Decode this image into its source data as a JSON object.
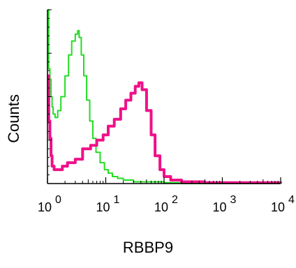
{
  "chart_data": {
    "type": "line",
    "xlabel": "RBBP9",
    "ylabel": "Counts",
    "x_scale": "log",
    "xlim": [
      1,
      10000
    ],
    "x_ticks": [
      {
        "base": "10",
        "exp": "0"
      },
      {
        "base": "10",
        "exp": "1"
      },
      {
        "base": "10",
        "exp": "2"
      },
      {
        "base": "10",
        "exp": "3"
      },
      {
        "base": "10",
        "exp": "4"
      }
    ],
    "ylim": [
      0,
      100
    ],
    "grid": false,
    "legend": "none",
    "series": [
      {
        "color": "#22dd22",
        "x": [
          1.0,
          1.05,
          1.1,
          1.15,
          1.2,
          1.25,
          1.35,
          1.5,
          1.7,
          2.0,
          2.3,
          2.6,
          3.0,
          3.3,
          3.5,
          3.8,
          4.2,
          4.7,
          5.3,
          6.0,
          6.8,
          8.0,
          9.5,
          11,
          13,
          16,
          20,
          25,
          30,
          40,
          60,
          100,
          200,
          10000
        ],
        "y": [
          100,
          66,
          60,
          50,
          44,
          40,
          38,
          42,
          50,
          62,
          74,
          82,
          86,
          88,
          84,
          74,
          62,
          48,
          36,
          26,
          18,
          12,
          8,
          6,
          4,
          3,
          2,
          2,
          1,
          1,
          1,
          0.5,
          0,
          0
        ]
      },
      {
        "color": "#ee1188",
        "x": [
          1.0,
          1.05,
          1.1,
          1.15,
          1.2,
          1.3,
          1.5,
          1.8,
          2.2,
          3.0,
          4.0,
          5.5,
          7.0,
          9.0,
          11,
          14,
          18,
          22,
          27,
          32,
          37,
          42,
          50,
          60,
          70,
          85,
          100,
          130,
          200,
          500,
          1000,
          3000,
          10000
        ],
        "y": [
          62,
          36,
          26,
          16,
          10,
          8,
          8,
          10,
          12,
          14,
          20,
          22,
          25,
          28,
          33,
          37,
          43,
          48,
          52,
          56,
          58,
          54,
          42,
          28,
          16,
          8,
          4,
          2,
          1,
          0.5,
          0.5,
          0.5,
          0
        ]
      }
    ]
  }
}
